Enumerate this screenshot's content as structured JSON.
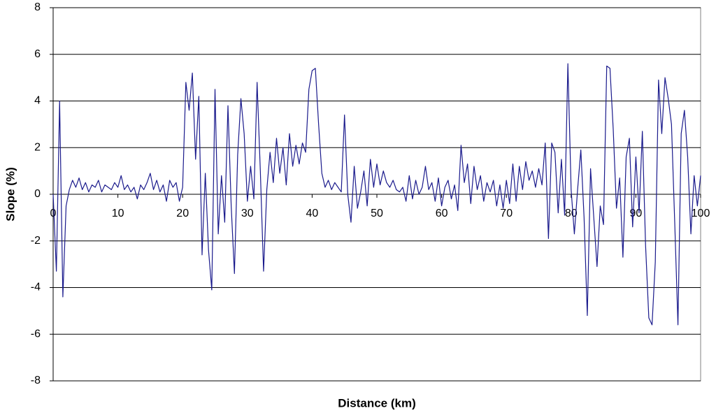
{
  "chart_data": {
    "type": "line",
    "x_label": "Distance (km)",
    "y_label": "Slope (%)",
    "color": "#1a1a8c",
    "xlim": [
      0,
      100
    ],
    "xticks": [
      0,
      10,
      20,
      30,
      40,
      50,
      60,
      70,
      80,
      90,
      100
    ],
    "ylim": [
      -8,
      8
    ],
    "yticks": [
      -8,
      -6,
      -4,
      -2,
      0,
      2,
      4,
      6,
      8
    ],
    "grid": true,
    "x": [
      0,
      0.5,
      1,
      1.5,
      2,
      2.5,
      3,
      3.5,
      4,
      4.5,
      5,
      5.5,
      6,
      6.5,
      7,
      7.5,
      8,
      8.5,
      9,
      9.5,
      10,
      10.5,
      11,
      11.5,
      12,
      12.5,
      13,
      13.5,
      14,
      14.5,
      15,
      15.5,
      16,
      16.5,
      17,
      17.5,
      18,
      18.5,
      19,
      19.5,
      20,
      20.5,
      21,
      21.5,
      22,
      22.5,
      23,
      23.5,
      24,
      24.5,
      25,
      25.5,
      26,
      26.5,
      27,
      27.5,
      28,
      28.5,
      29,
      29.5,
      30,
      30.5,
      31,
      31.5,
      32,
      32.5,
      33,
      33.5,
      34,
      34.5,
      35,
      35.5,
      36,
      36.5,
      37,
      37.5,
      38,
      38.5,
      39,
      39.5,
      40,
      40.5,
      41,
      41.5,
      42,
      42.5,
      43,
      43.5,
      44,
      44.5,
      45,
      45.5,
      46,
      46.5,
      47,
      47.5,
      48,
      48.5,
      49,
      49.5,
      50,
      50.5,
      51,
      51.5,
      52,
      52.5,
      53,
      53.5,
      54,
      54.5,
      55,
      55.5,
      56,
      56.5,
      57,
      57.5,
      58,
      58.5,
      59,
      59.5,
      60,
      60.5,
      61,
      61.5,
      62,
      62.5,
      63,
      63.5,
      64,
      64.5,
      65,
      65.5,
      66,
      66.5,
      67,
      67.5,
      68,
      68.5,
      69,
      69.5,
      70,
      70.5,
      71,
      71.5,
      72,
      72.5,
      73,
      73.5,
      74,
      74.5,
      75,
      75.5,
      76,
      76.5,
      77,
      77.5,
      78,
      78.5,
      79,
      79.5,
      80,
      80.5,
      81,
      81.5,
      82,
      82.5,
      83,
      83.5,
      84,
      84.5,
      85,
      85.5,
      86,
      86.5,
      87,
      87.5,
      88,
      88.5,
      89,
      89.5,
      90,
      90.5,
      91,
      91.5,
      92,
      92.5,
      93,
      93.5,
      94,
      94.5,
      95,
      95.5,
      96,
      96.5,
      97,
      97.5,
      98,
      98.5,
      99,
      99.5,
      100
    ],
    "values": [
      0,
      -3.3,
      4.0,
      -4.4,
      -0.5,
      0.2,
      0.6,
      0.3,
      0.7,
      0.2,
      0.5,
      0.1,
      0.4,
      0.3,
      0.6,
      0.1,
      0.4,
      0.3,
      0.2,
      0.5,
      0.3,
      0.8,
      0.2,
      0.4,
      0.1,
      0.3,
      -0.2,
      0.4,
      0.2,
      0.5,
      0.9,
      0.2,
      0.6,
      0.1,
      0.4,
      -0.3,
      0.6,
      0.3,
      0.5,
      -0.3,
      0.3,
      4.8,
      3.6,
      5.2,
      1.5,
      4.2,
      -2.6,
      0.9,
      -2.4,
      -4.1,
      4.5,
      -1.7,
      0.8,
      -1.2,
      3.8,
      -0.5,
      -3.4,
      1.7,
      4.1,
      2.6,
      -0.3,
      1.2,
      -0.2,
      4.8,
      1.0,
      -3.3,
      0.2,
      1.8,
      0.5,
      2.4,
      0.9,
      2.0,
      0.4,
      2.6,
      1.2,
      2.1,
      1.3,
      2.2,
      1.8,
      4.5,
      5.3,
      5.4,
      3.0,
      0.9,
      0.3,
      0.6,
      0.2,
      0.5,
      0.3,
      0.1,
      3.4,
      0.0,
      -1.2,
      1.2,
      -0.6,
      0.1,
      1.0,
      -0.5,
      1.5,
      0.3,
      1.3,
      0.4,
      1.0,
      0.5,
      0.3,
      0.6,
      0.2,
      0.1,
      0.3,
      -0.3,
      0.8,
      -0.2,
      0.6,
      0.0,
      0.3,
      1.2,
      0.2,
      0.5,
      -0.3,
      0.7,
      -0.5,
      0.3,
      0.6,
      -0.2,
      0.4,
      -0.7,
      2.1,
      0.5,
      1.3,
      -0.4,
      1.2,
      0.2,
      0.8,
      -0.3,
      0.5,
      0.1,
      0.6,
      -0.5,
      0.4,
      -0.6,
      0.6,
      -0.4,
      1.3,
      -0.3,
      1.2,
      0.2,
      1.4,
      0.6,
      1.0,
      0.3,
      1.1,
      0.4,
      2.2,
      -1.9,
      2.2,
      1.8,
      -0.8,
      1.5,
      -0.9,
      5.6,
      0.2,
      -1.7,
      0.2,
      1.9,
      -1.0,
      -5.2,
      1.1,
      -1.0,
      -3.1,
      -0.5,
      -1.3,
      5.5,
      5.4,
      2.8,
      -0.6,
      0.7,
      -2.7,
      1.6,
      2.4,
      -1.4,
      1.6,
      -0.8,
      2.7,
      -2.2,
      -5.3,
      -5.6,
      -2.9,
      4.9,
      2.6,
      5.0,
      4.1,
      3.0,
      -1.2,
      -5.6,
      2.6,
      3.6,
      1.6,
      -1.7,
      0.8,
      -0.5,
      0.8
    ]
  }
}
